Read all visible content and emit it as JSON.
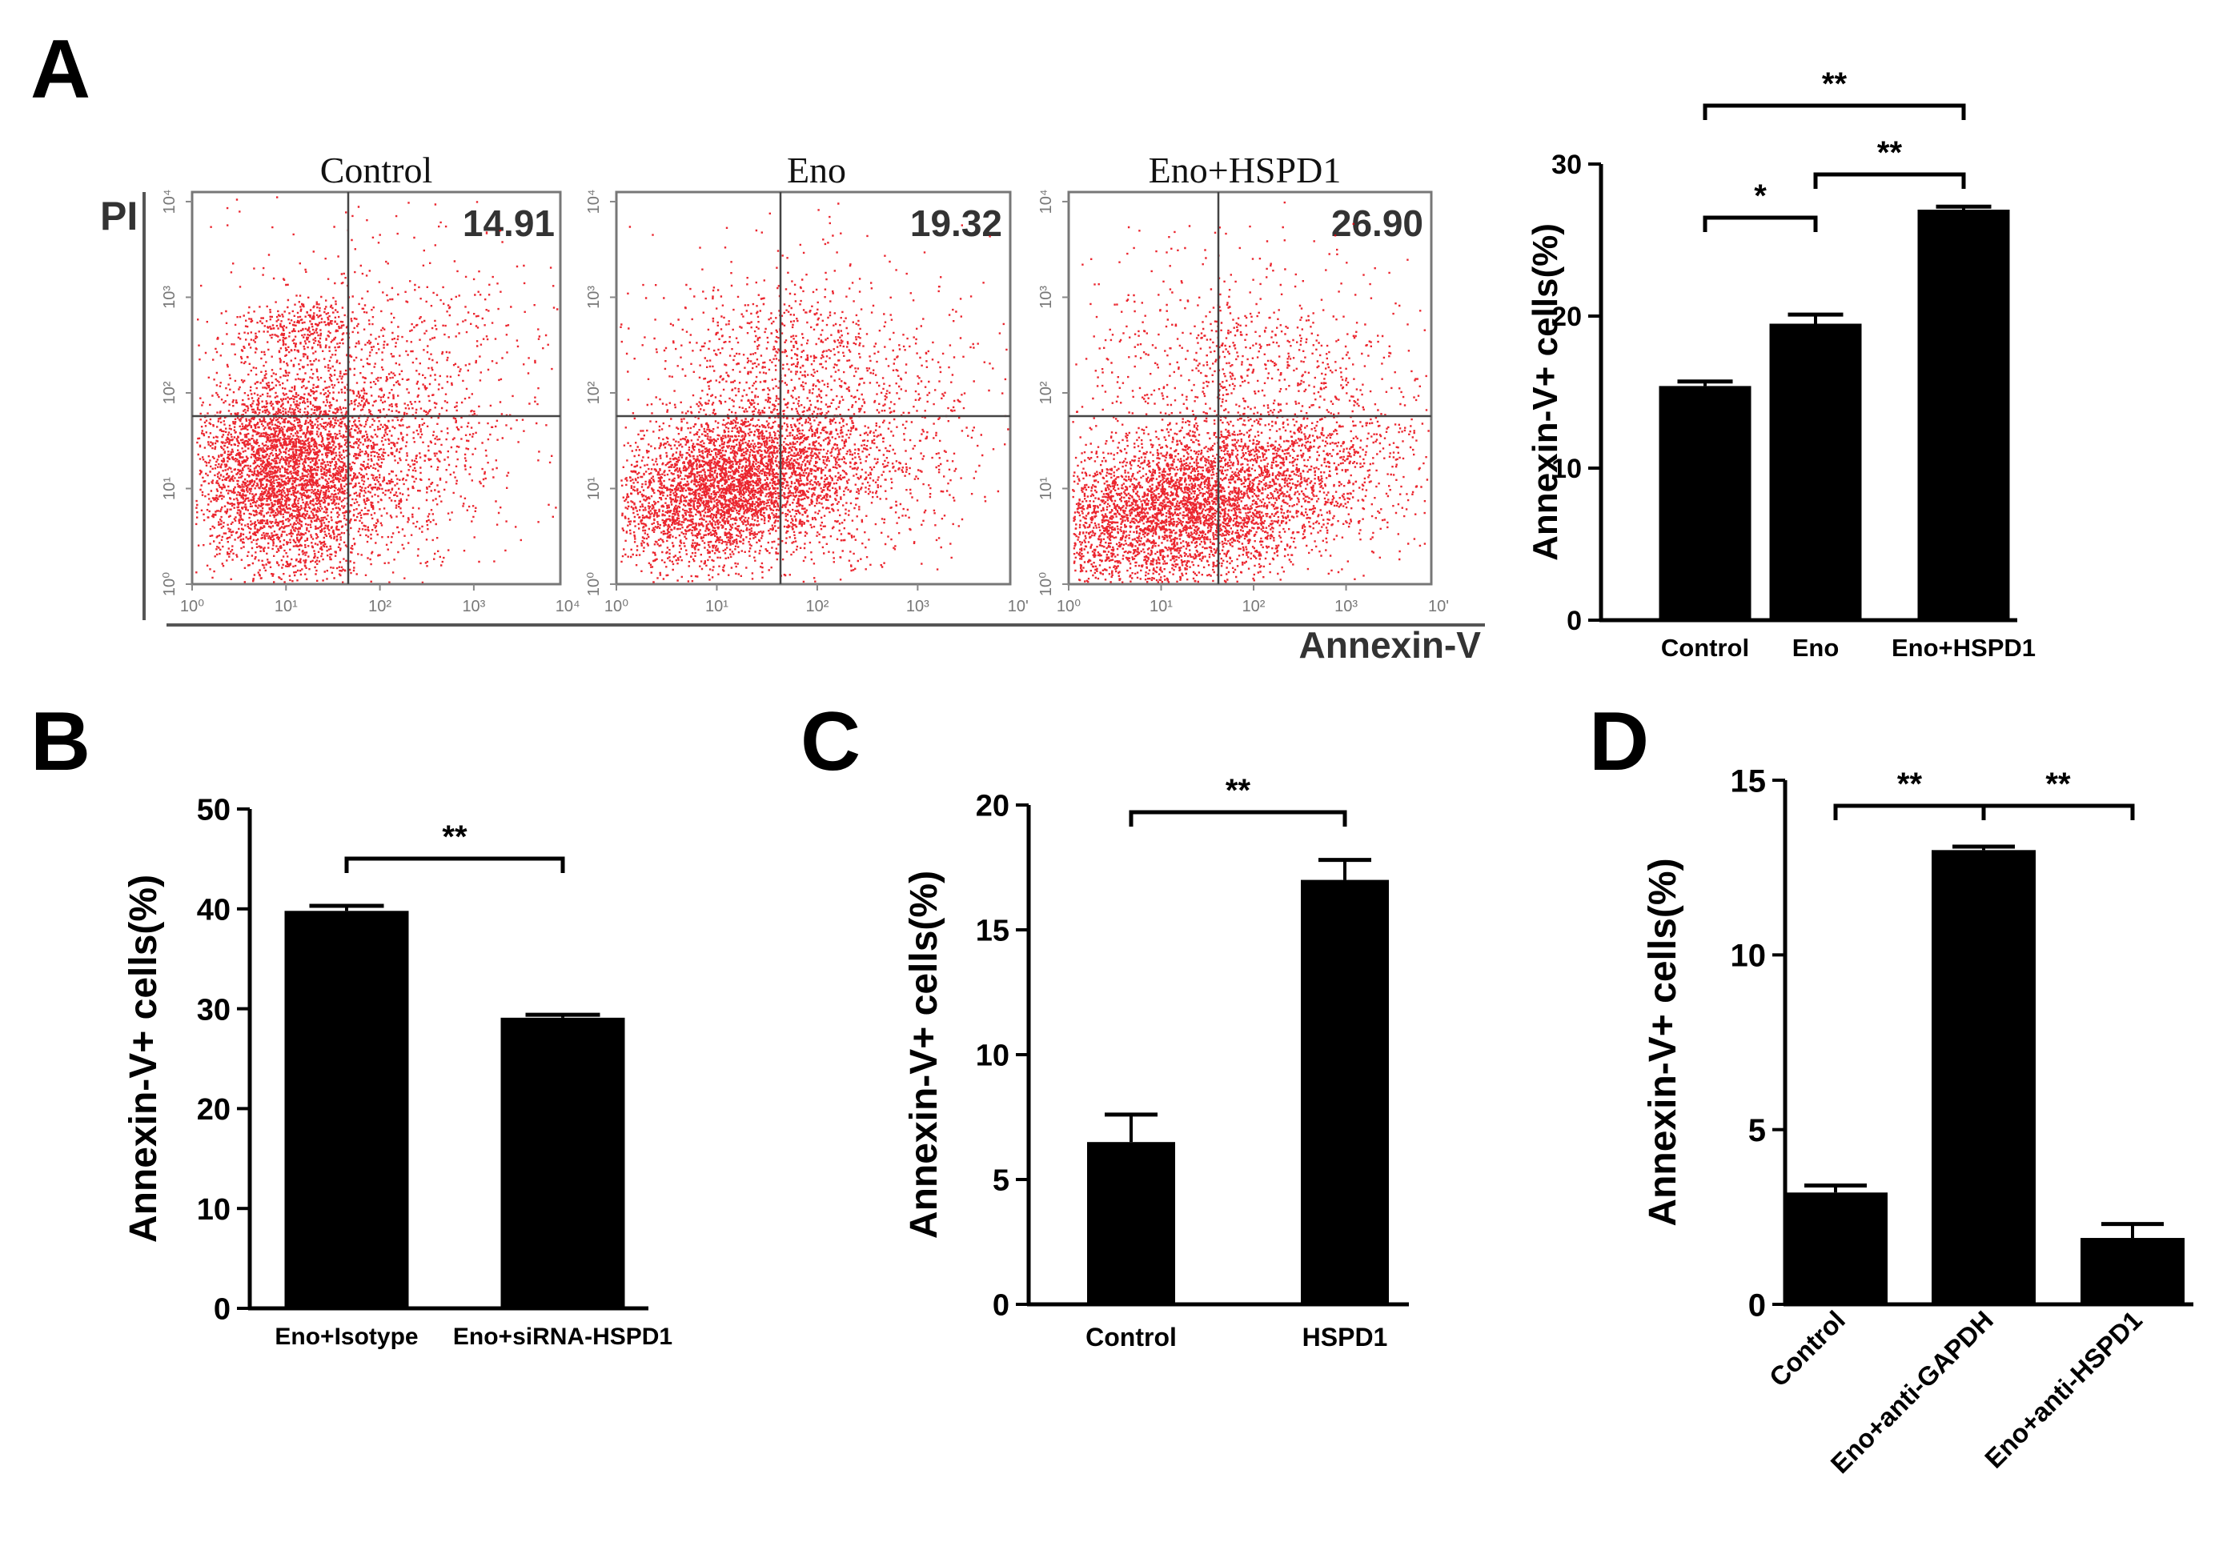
{
  "panel_letters": [
    "A",
    "B",
    "C",
    "D"
  ],
  "flow": {
    "y_axis_label": "PI",
    "x_axis_label": "Annexin-V",
    "x_tick_labels_full": [
      "10⁰",
      "10¹",
      "10²",
      "10³",
      "10⁴"
    ],
    "x_tick_labels_cut": [
      "10⁰",
      "10¹",
      "10²",
      "10³",
      "10'"
    ],
    "y_tick_labels": [
      "10⁰",
      "10¹",
      "10²",
      "10³",
      "10⁴"
    ],
    "dot_color": "#e8000b",
    "panels": [
      {
        "title": "Control",
        "quadrant_value": "14.91"
      },
      {
        "title": "Eno",
        "quadrant_value": "19.32"
      },
      {
        "title": "Eno+HSPD1",
        "quadrant_value": "26.90"
      }
    ]
  },
  "chart_data": [
    {
      "id": "A",
      "type": "bar",
      "ylabel": "Annexin-V+ cells(%)",
      "ylim": [
        0,
        30
      ],
      "yticks": [
        0,
        10,
        20,
        30
      ],
      "categories": [
        "Control",
        "Eno",
        "Eno+HSPD1"
      ],
      "values": [
        15.4,
        19.5,
        27.0
      ],
      "errors": [
        0.3,
        0.6,
        0.2
      ],
      "significance": [
        {
          "from": 0,
          "to": 2,
          "label": "**"
        },
        {
          "from": 1,
          "to": 2,
          "label": "**"
        },
        {
          "from": 0,
          "to": 1,
          "label": "*"
        }
      ],
      "label_rotation": 0
    },
    {
      "id": "B",
      "type": "bar",
      "ylabel": "Annexin-V+ cells(%)",
      "ylim": [
        0,
        50
      ],
      "yticks": [
        0,
        10,
        20,
        30,
        40,
        50
      ],
      "categories": [
        "Eno+Isotype",
        "Eno+siRNA-HSPD1"
      ],
      "values": [
        39.8,
        29.1
      ],
      "errors": [
        0.5,
        0.3
      ],
      "significance": [
        {
          "from": 0,
          "to": 1,
          "label": "**"
        }
      ],
      "label_rotation": 0
    },
    {
      "id": "C",
      "type": "bar",
      "ylabel": "Annexin-V+ cells(%)",
      "ylim": [
        0,
        20
      ],
      "yticks": [
        0,
        5,
        10,
        15,
        20
      ],
      "categories": [
        "Control",
        "HSPD1"
      ],
      "values": [
        6.5,
        17.0
      ],
      "errors": [
        1.1,
        0.8
      ],
      "significance": [
        {
          "from": 0,
          "to": 1,
          "label": "**"
        }
      ],
      "label_rotation": 0
    },
    {
      "id": "D",
      "type": "bar",
      "ylabel": "Annexin-V+ cells(%)",
      "ylim": [
        0,
        15
      ],
      "yticks": [
        0,
        5,
        10,
        15
      ],
      "categories": [
        "Control",
        "Eno+anti-GAPDH",
        "Eno+anti-HSPD1"
      ],
      "values": [
        3.2,
        13.0,
        1.9
      ],
      "errors": [
        0.2,
        0.1,
        0.4
      ],
      "significance": [
        {
          "from": 0,
          "to": 1,
          "label": "**"
        },
        {
          "from": 1,
          "to": 2,
          "label": "**"
        }
      ],
      "label_rotation": -45
    }
  ]
}
